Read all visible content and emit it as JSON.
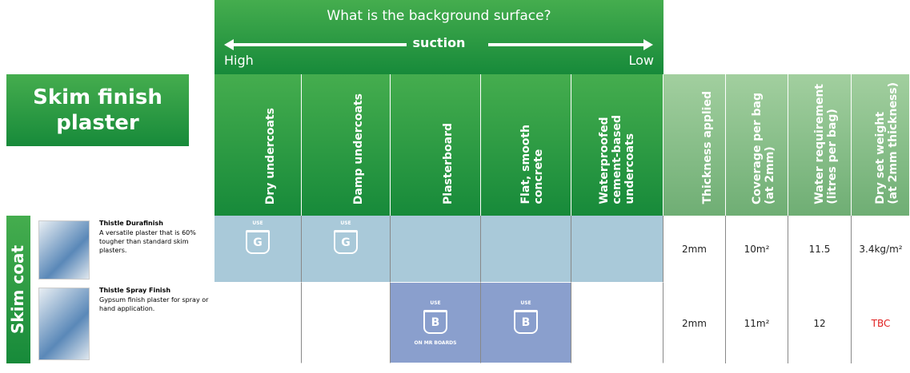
{
  "header": {
    "question": "What is the background surface?",
    "suction": "suction",
    "high": "High",
    "low": "Low",
    "title": "Skim finish plaster",
    "section": "Skim coat"
  },
  "columns": [
    [
      "Dry undercoats"
    ],
    [
      "Damp undercoats"
    ],
    [
      "Plasterboard"
    ],
    [
      "Flat, smooth",
      "concrete"
    ],
    [
      "Waterproofed",
      "cement-based",
      "undercoats"
    ],
    [
      "Thickness applied"
    ],
    [
      "Coverage per bag",
      "(at 2mm)"
    ],
    [
      "Water requirement",
      "(litres per bag)"
    ],
    [
      "Dry set weight",
      "(at 2mm thickness)"
    ]
  ],
  "rows": [
    {
      "name": "Thistle Durafinish",
      "description": "A versatile plaster that is 60% tougher than standard skim plasters.",
      "surfaces": [
        {
          "use": "USE",
          "letter": "G"
        },
        {
          "use": "USE",
          "letter": "G"
        },
        null,
        null,
        null
      ],
      "thickness": "2mm",
      "coverage": "10m²",
      "water": "11.5",
      "weight": "3.4kg/m²"
    },
    {
      "name": "Thistle Spray Finish",
      "description": "Gypsum finish plaster for spray or hand application.",
      "surfaces": [
        null,
        null,
        {
          "use": "USE",
          "letter": "B",
          "note": "ON MR BOARDS"
        },
        {
          "use": "USE",
          "letter": "B"
        },
        null
      ],
      "thickness": "2mm",
      "coverage": "11m²",
      "water": "12",
      "weight": "TBC"
    }
  ]
}
